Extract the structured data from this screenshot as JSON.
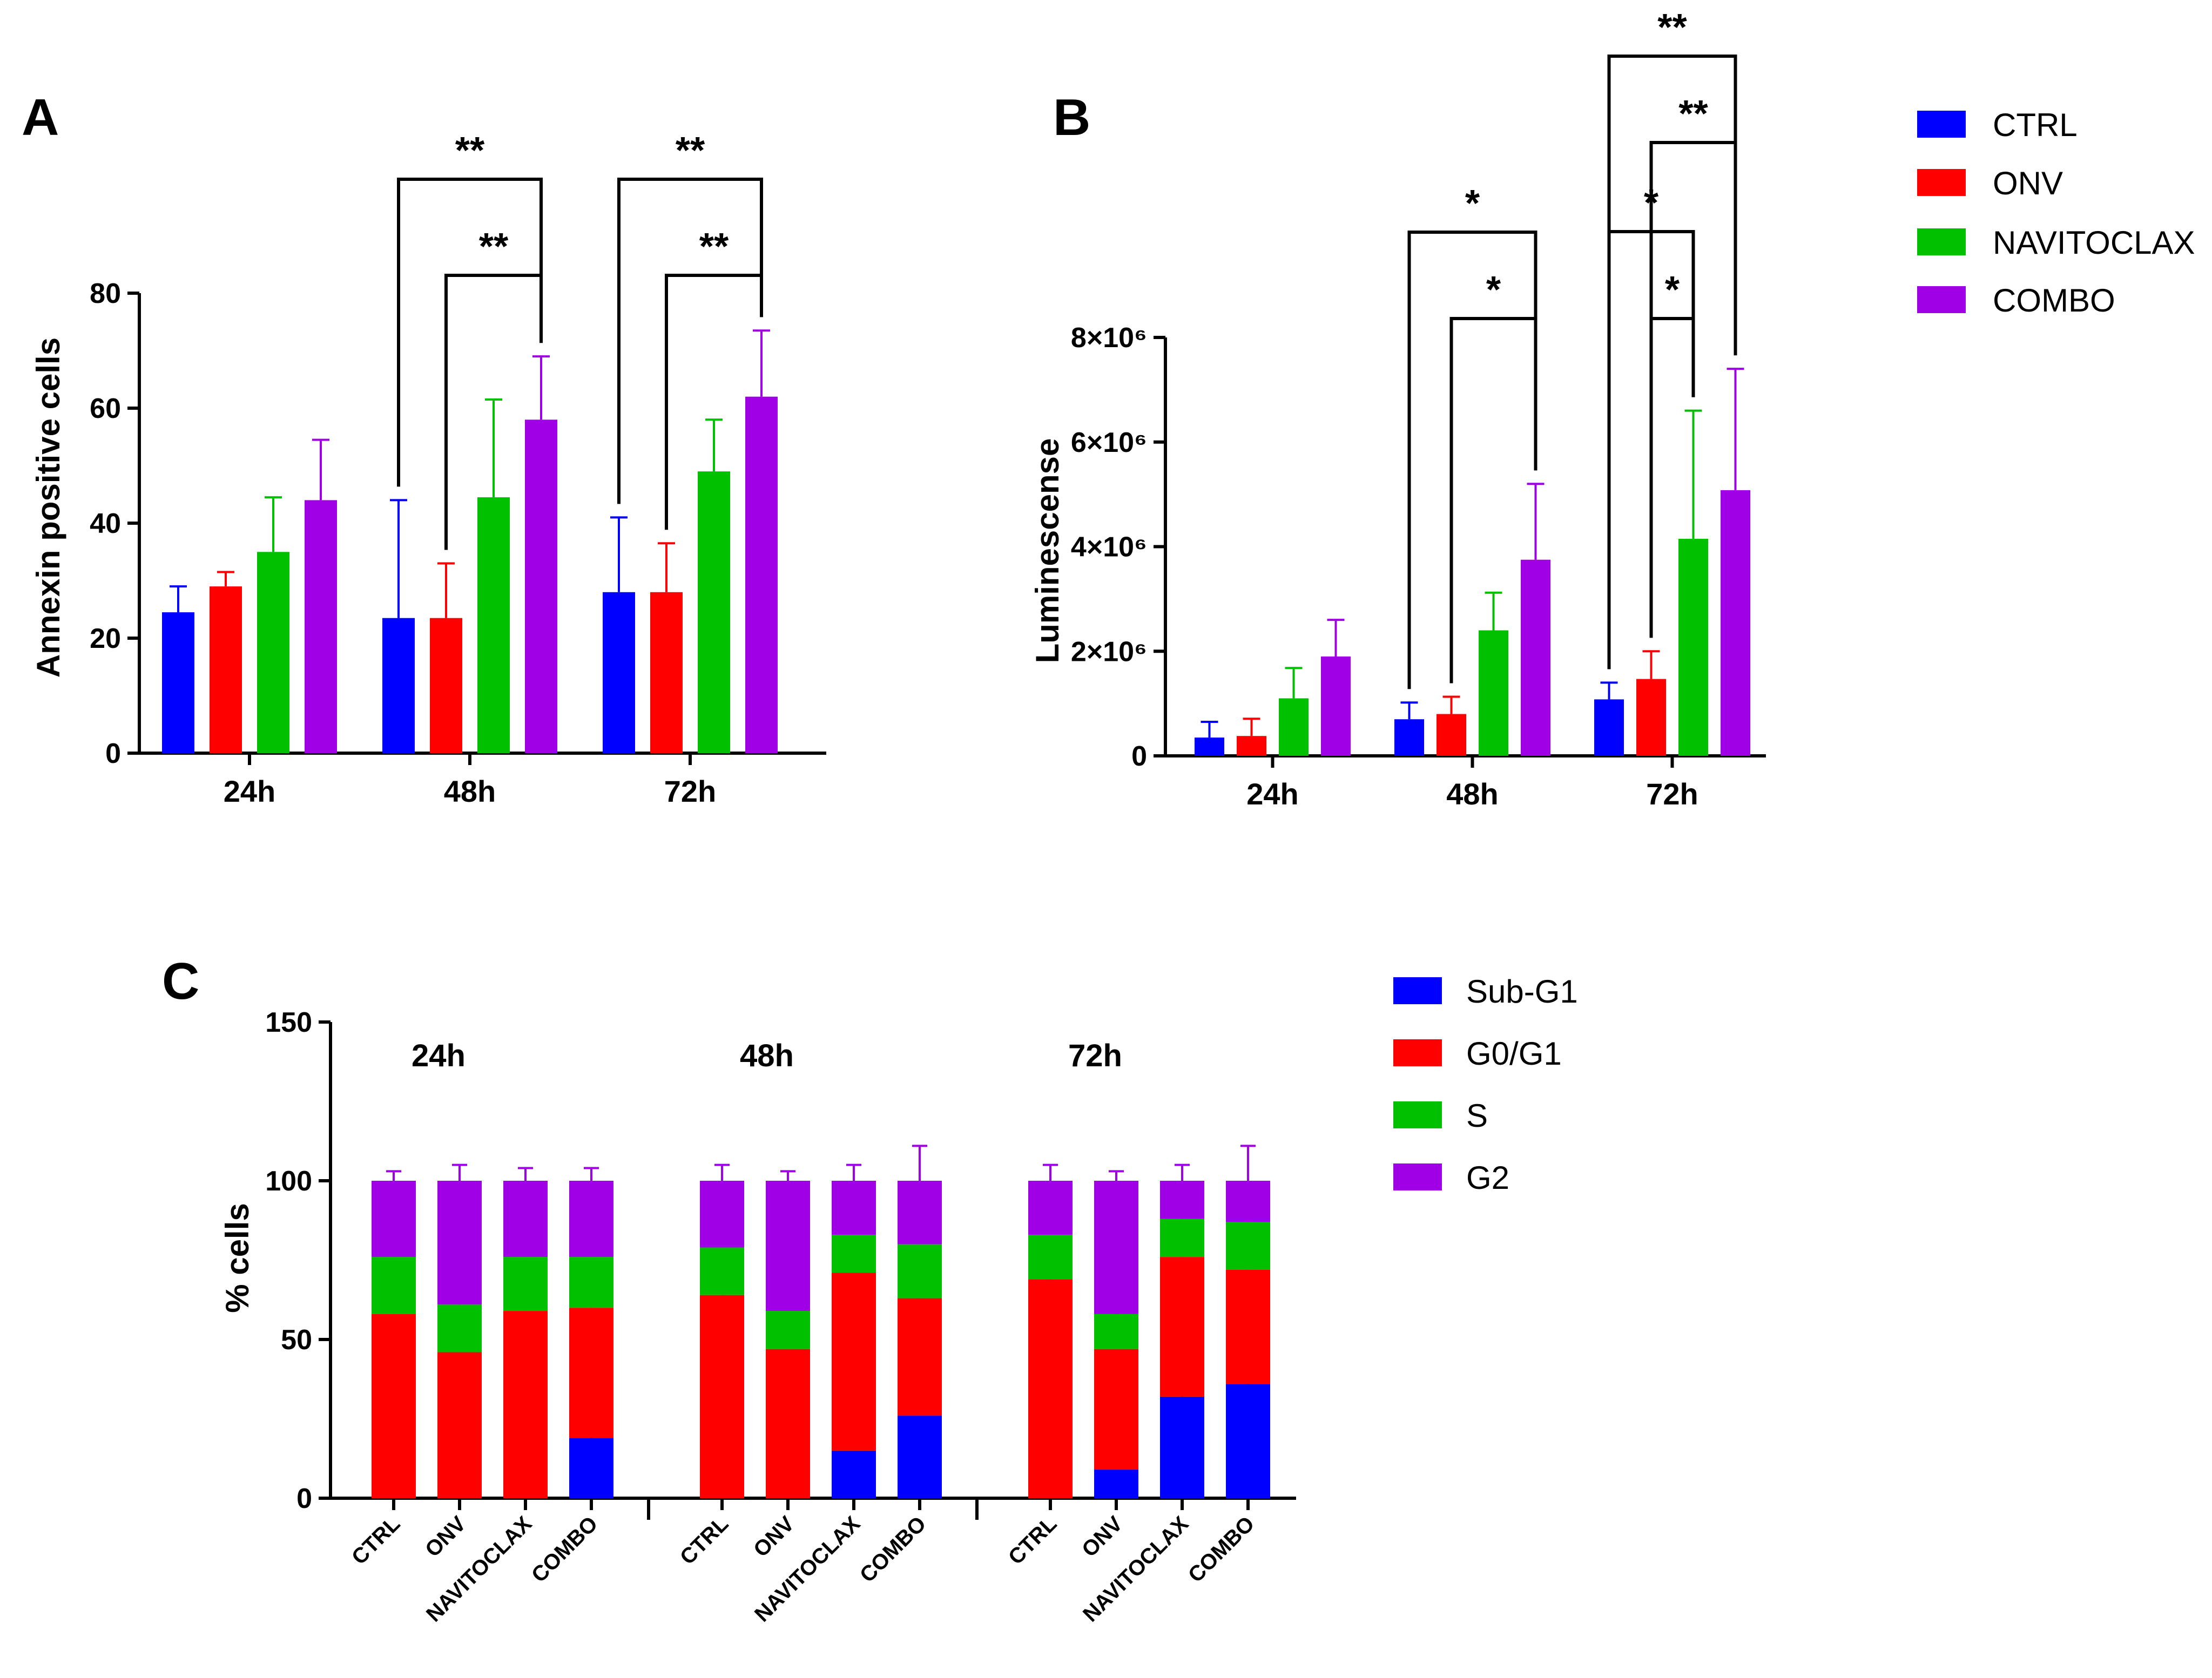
{
  "colors": {
    "CTRL": "#0000ff",
    "ONV": "#ff0000",
    "NAVITOCLAX": "#00c000",
    "COMBO": "#a000e6",
    "Sub-G1": "#0000ff",
    "G0/G1": "#ff0000",
    "S": "#00c000",
    "G2": "#a000e6"
  },
  "chart_data": [
    {
      "panel": "A",
      "type": "bar",
      "ylabel": "Annexin positive cells",
      "ylim": [
        0,
        80
      ],
      "yticks": [
        "0",
        "20",
        "40",
        "60",
        "80"
      ],
      "yticks_values": [
        0,
        20,
        40,
        60,
        80
      ],
      "categories": [
        "24h",
        "48h",
        "72h"
      ],
      "series": [
        {
          "name": "CTRL",
          "values": [
            24.5,
            23.5,
            28
          ],
          "errors": [
            4.5,
            20.5,
            13
          ]
        },
        {
          "name": "ONV",
          "values": [
            29,
            23.5,
            28
          ],
          "errors": [
            2.5,
            9.5,
            8.5
          ]
        },
        {
          "name": "NAVITOCLAX",
          "values": [
            35,
            44.5,
            49
          ],
          "errors": [
            9.5,
            17,
            9
          ]
        },
        {
          "name": "COMBO",
          "values": [
            44,
            58,
            62
          ],
          "errors": [
            10.5,
            11,
            11.5
          ]
        }
      ],
      "significance": [
        {
          "group": 1,
          "from": 0,
          "to": 3,
          "label": "**",
          "level": 0
        },
        {
          "group": 1,
          "from": 1,
          "to": 3,
          "label": "**",
          "level": 1
        },
        {
          "group": 2,
          "from": 0,
          "to": 3,
          "label": "**",
          "level": 0
        },
        {
          "group": 2,
          "from": 1,
          "to": 3,
          "label": "**",
          "level": 1
        }
      ]
    },
    {
      "panel": "B",
      "type": "bar",
      "ylabel": "Luminescense",
      "ylim": [
        0,
        8000000
      ],
      "yticks": [
        "0",
        "2×10⁶",
        "4×10⁶",
        "6×10⁶",
        "8×10⁶"
      ],
      "yticks_values": [
        0,
        2000000,
        4000000,
        6000000,
        8000000
      ],
      "categories": [
        "24h",
        "48h",
        "72h"
      ],
      "series": [
        {
          "name": "CTRL",
          "values": [
            350000,
            700000,
            1080000
          ],
          "errors": [
            300000,
            320000,
            320000
          ]
        },
        {
          "name": "ONV",
          "values": [
            380000,
            800000,
            1470000
          ],
          "errors": [
            330000,
            330000,
            530000
          ]
        },
        {
          "name": "NAVITOCLAX",
          "values": [
            1100000,
            2400000,
            4150000
          ],
          "errors": [
            580000,
            720000,
            2450000
          ]
        },
        {
          "name": "COMBO",
          "values": [
            1900000,
            3750000,
            5080000
          ],
          "errors": [
            700000,
            1450000,
            2320000
          ]
        }
      ],
      "significance": [
        {
          "group": 1,
          "from": 0,
          "to": 3,
          "label": "*",
          "level": 0
        },
        {
          "group": 1,
          "from": 1,
          "to": 3,
          "label": "*",
          "level": 1
        },
        {
          "group": 2,
          "from": 0,
          "to": 3,
          "label": "**",
          "level": 0
        },
        {
          "group": 2,
          "from": 1,
          "to": 3,
          "label": "**",
          "level": 1
        },
        {
          "group": 2,
          "from": 0,
          "to": 2,
          "label": "*",
          "level": 2
        },
        {
          "group": 2,
          "from": 1,
          "to": 2,
          "label": "*",
          "level": 3
        }
      ]
    },
    {
      "panel": "C",
      "type": "stacked-bar",
      "ylabel": "% cells",
      "ylim": [
        0,
        150
      ],
      "yticks": [
        "0",
        "50",
        "100",
        "150"
      ],
      "yticks_values": [
        0,
        50,
        100,
        150
      ],
      "groups": [
        "24h",
        "48h",
        "72h"
      ],
      "categories": [
        "CTRL",
        "ONV",
        "NAVITOCLAX",
        "COMBO"
      ],
      "stack_order": [
        "Sub-G1",
        "G0/G1",
        "S",
        "G2"
      ],
      "data": [
        [
          {
            "Sub-G1": 0,
            "G0/G1": 58,
            "S": 18,
            "G2": 24,
            "err": [
              0,
              5,
              2,
              3
            ]
          },
          {
            "Sub-G1": 0,
            "G0/G1": 46,
            "S": 15,
            "G2": 39,
            "err": [
              0,
              8,
              3,
              5
            ]
          },
          {
            "Sub-G1": 0,
            "G0/G1": 59,
            "S": 17,
            "G2": 24,
            "err": [
              0,
              5,
              3,
              4
            ]
          },
          {
            "Sub-G1": 19,
            "G0/G1": 41,
            "S": 16,
            "G2": 24,
            "err": [
              2,
              6,
              2,
              4
            ]
          }
        ],
        [
          {
            "Sub-G1": 0,
            "G0/G1": 64,
            "S": 15,
            "G2": 21,
            "err": [
              0,
              10,
              5,
              5
            ]
          },
          {
            "Sub-G1": 0,
            "G0/G1": 47,
            "S": 12,
            "G2": 41,
            "err": [
              0,
              4,
              1,
              3
            ]
          },
          {
            "Sub-G1": 15,
            "G0/G1": 56,
            "S": 12,
            "G2": 17,
            "err": [
              0,
              11,
              4,
              5
            ]
          },
          {
            "Sub-G1": 26,
            "G0/G1": 37,
            "S": 17,
            "G2": 20,
            "err": [
              13,
              8,
              1,
              11
            ]
          }
        ],
        [
          {
            "Sub-G1": 0,
            "G0/G1": 69,
            "S": 14,
            "G2": 17,
            "err": [
              0,
              10,
              5,
              5
            ]
          },
          {
            "Sub-G1": 9,
            "G0/G1": 38,
            "S": 11,
            "G2": 42,
            "err": [
              0,
              4,
              1,
              3
            ]
          },
          {
            "Sub-G1": 32,
            "G0/G1": 44,
            "S": 12,
            "G2": 12,
            "err": [
              2,
              14,
              4,
              5
            ]
          },
          {
            "Sub-G1": 36,
            "G0/G1": 36,
            "S": 15,
            "G2": 13,
            "err": [
              1,
              8,
              1,
              11
            ]
          }
        ]
      ]
    }
  ],
  "legend_top": [
    "CTRL",
    "ONV",
    "NAVITOCLAX",
    "COMBO"
  ],
  "legend_bottom": [
    "Sub-G1",
    "G0/G1",
    "S",
    "G2"
  ]
}
